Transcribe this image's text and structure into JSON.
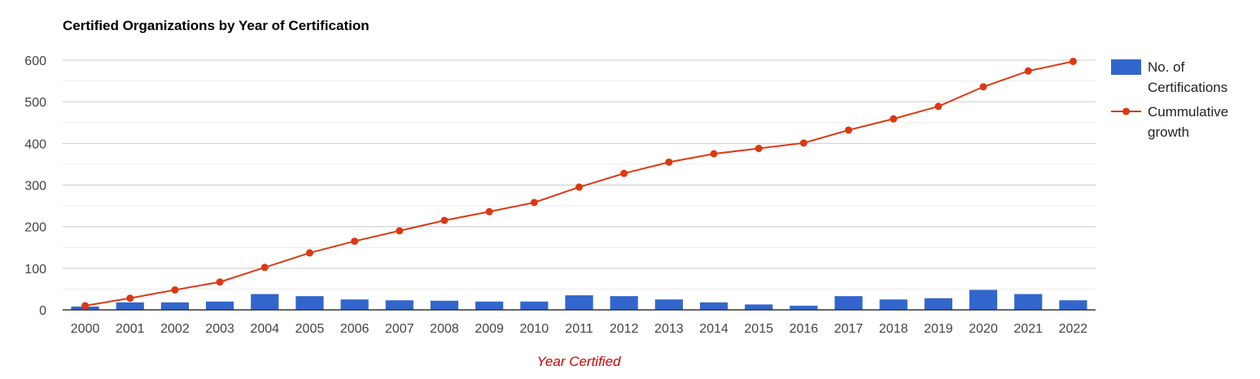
{
  "title": "Certified Organizations by Year of Certification",
  "chart_data": {
    "type": "bar+line",
    "title": "Certified Organizations by Year of Certification",
    "xlabel": "Year Certified",
    "ylabel": "",
    "ylim": [
      0,
      600
    ],
    "yticks": [
      0,
      100,
      200,
      300,
      400,
      500,
      600
    ],
    "grid": true,
    "legend_position": "right",
    "categories": [
      "2000",
      "2001",
      "2002",
      "2003",
      "2004",
      "2005",
      "2006",
      "2007",
      "2008",
      "2009",
      "2010",
      "2011",
      "2012",
      "2013",
      "2014",
      "2015",
      "2016",
      "2017",
      "2018",
      "2019",
      "2020",
      "2021",
      "2022"
    ],
    "series": [
      {
        "name": "No. of Certifications",
        "legend_lines": [
          "No. of",
          "Certifications"
        ],
        "type": "bar",
        "color": "#3366cc",
        "values": [
          8,
          18,
          18,
          20,
          38,
          33,
          25,
          23,
          22,
          20,
          20,
          35,
          33,
          25,
          18,
          13,
          10,
          33,
          25,
          28,
          48,
          38,
          23
        ]
      },
      {
        "name": "Cummulative growth",
        "legend_lines": [
          "Cummulative",
          "growth"
        ],
        "type": "line",
        "color": "#dc3912",
        "values": [
          10,
          28,
          48,
          67,
          102,
          137,
          165,
          190,
          215,
          236,
          258,
          295,
          328,
          355,
          375,
          388,
          401,
          432,
          459,
          489,
          536,
          574,
          597
        ]
      }
    ]
  }
}
